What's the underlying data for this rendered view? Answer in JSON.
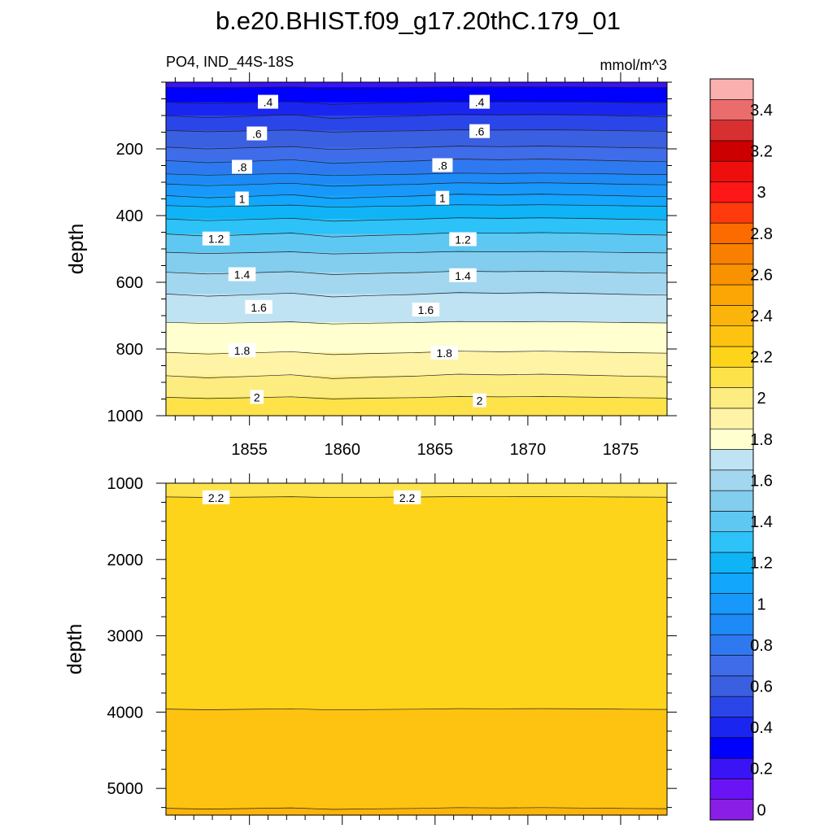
{
  "title": "b.e20.BHIST.f09_g17.20thC.179_01",
  "chart_data": {
    "type": "contour",
    "variable_label": "PO4, IND_44S-18S",
    "units_label": "mmol/m^3",
    "x_axis": {
      "range": [
        1850.5,
        1877.5
      ],
      "ticks": [
        1855,
        1860,
        1865,
        1870,
        1875
      ],
      "tick_labels": [
        "1855",
        "1860",
        "1865",
        "1870",
        "1875"
      ]
    },
    "panels": [
      {
        "id": "upper",
        "ylabel": "depth",
        "ylim": [
          0,
          1000
        ],
        "inverted": true,
        "y_ticks": [
          200,
          400,
          600,
          800,
          1000
        ],
        "y_tick_labels": [
          "200",
          "400",
          "600",
          "800",
          "1000"
        ],
        "contour_interval": 0.1,
        "contour_levels": [
          0.3,
          0.4,
          0.5,
          0.6,
          0.7,
          0.8,
          0.9,
          1.0,
          1.1,
          1.2,
          1.3,
          1.4,
          1.5,
          1.6,
          1.7,
          1.8,
          1.9,
          2.0,
          2.1
        ],
        "contour_depths": [
          15,
          60,
          100,
          145,
          195,
          235,
          275,
          305,
          340,
          370,
          410,
          455,
          510,
          570,
          635,
          720,
          810,
          880,
          945
        ],
        "labels": [
          {
            "text": ".4",
            "x": 1856.0,
            "y": 60
          },
          {
            "text": ".4",
            "x": 1867.4,
            "y": 60
          },
          {
            "text": ".6",
            "x": 1855.4,
            "y": 155
          },
          {
            "text": ".6",
            "x": 1867.4,
            "y": 148
          },
          {
            "text": ".8",
            "x": 1854.6,
            "y": 255
          },
          {
            "text": ".8",
            "x": 1865.4,
            "y": 250
          },
          {
            "text": "1",
            "x": 1854.6,
            "y": 350
          },
          {
            "text": "1",
            "x": 1865.4,
            "y": 348
          },
          {
            "text": "1.2",
            "x": 1853.2,
            "y": 470
          },
          {
            "text": "1.2",
            "x": 1866.5,
            "y": 472
          },
          {
            "text": "1.4",
            "x": 1854.6,
            "y": 577
          },
          {
            "text": "1.4",
            "x": 1866.5,
            "y": 580
          },
          {
            "text": "1.6",
            "x": 1855.5,
            "y": 675
          },
          {
            "text": "1.6",
            "x": 1864.5,
            "y": 683
          },
          {
            "text": "1.8",
            "x": 1854.6,
            "y": 805
          },
          {
            "text": "1.8",
            "x": 1865.5,
            "y": 812
          },
          {
            "text": "2",
            "x": 1855.4,
            "y": 945
          },
          {
            "text": "2",
            "x": 1867.4,
            "y": 955
          }
        ]
      },
      {
        "id": "lower",
        "ylabel": "depth",
        "ylim": [
          1000,
          5350
        ],
        "inverted": true,
        "y_ticks": [
          1000,
          2000,
          3000,
          4000,
          5000
        ],
        "y_tick_labels": [
          "1000",
          "2000",
          "3000",
          "4000",
          "5000"
        ],
        "contour_interval": 0.1,
        "contour_levels": [
          2.2,
          2.3,
          2.4
        ],
        "contour_depths": [
          1180,
          3960,
          5260
        ],
        "labels": [
          {
            "text": "2.2",
            "x": 1853.2,
            "y": 1190
          },
          {
            "text": "2.2",
            "x": 1863.5,
            "y": 1190
          }
        ]
      }
    ],
    "colorbar": {
      "levels": [
        0,
        0.1,
        0.2,
        0.3,
        0.4,
        0.5,
        0.6,
        0.7,
        0.8,
        0.9,
        1.0,
        1.1,
        1.2,
        1.3,
        1.4,
        1.5,
        1.6,
        1.7,
        1.8,
        1.9,
        2.0,
        2.1,
        2.2,
        2.3,
        2.4,
        2.5,
        2.6,
        2.7,
        2.8,
        2.9,
        3.0,
        3.1,
        3.2,
        3.3,
        3.4,
        3.5
      ],
      "tick_labels": [
        "0",
        "0.2",
        "0.4",
        "0.6",
        "0.8",
        "1",
        "1.2",
        "1.4",
        "1.6",
        "1.8",
        "2",
        "2.2",
        "2.4",
        "2.6",
        "2.8",
        "3",
        "3.2",
        "3.4"
      ],
      "colors": [
        "#8a1ee6",
        "#6a14f5",
        "#3a14f5",
        "#0000ff",
        "#1a26f0",
        "#2a46e8",
        "#3a5fe0",
        "#3f6ce8",
        "#2f79f0",
        "#1e8af6",
        "#1898fa",
        "#12a6fc",
        "#0fb4f6",
        "#2dc2f8",
        "#5fc8f2",
        "#83cdee",
        "#a3d7ef",
        "#bfe3f3",
        "#ffffcf",
        "#fff4a6",
        "#fdec80",
        "#fde24a",
        "#fed41b",
        "#fdc310",
        "#fbb40a",
        "#fba605",
        "#f99200",
        "#f97f00",
        "#fb6b00",
        "#ff3a0c",
        "#ff1616",
        "#ee0e0e",
        "#cc0000",
        "#d83030",
        "#eb6c6c",
        "#fbb0b0"
      ]
    }
  }
}
